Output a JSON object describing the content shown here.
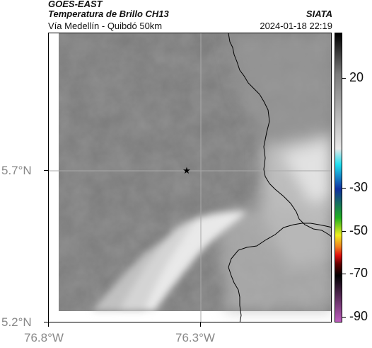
{
  "header": {
    "satellite": "GOES-EAST",
    "product": "Temperatura de Brillo CH13",
    "region": "Vía Medellín - Quibdó 50km",
    "organization": "SIATA",
    "datetime": "2024-01-18 22:19"
  },
  "axes": {
    "y_labels": [
      {
        "id": "lat-57",
        "text": "5.7°N"
      },
      {
        "id": "lat-52",
        "text": "5.2°N"
      }
    ],
    "x_labels": [
      {
        "id": "lon-768",
        "text": "76.8°W"
      },
      {
        "id": "lon-763",
        "text": "76.3°W"
      }
    ]
  },
  "colorbar": {
    "labels": [
      "20",
      "-30",
      "-50",
      "-70",
      "-90"
    ],
    "colors": [
      "#000000",
      "#7a7a7a",
      "#e8e8e8",
      "#20e0f0",
      "#1030a0",
      "#20b020",
      "#f0f020",
      "#f08020",
      "#e01010",
      "#600000",
      "#000000",
      "#c060c0"
    ]
  },
  "map": {
    "marker": "star-icon",
    "grid": true,
    "colors": {
      "cloud_dark": "#6c6c6c",
      "cloud_mid": "#8c8c8c",
      "clear_light": "#d8d8d8",
      "border": "#000000"
    }
  }
}
